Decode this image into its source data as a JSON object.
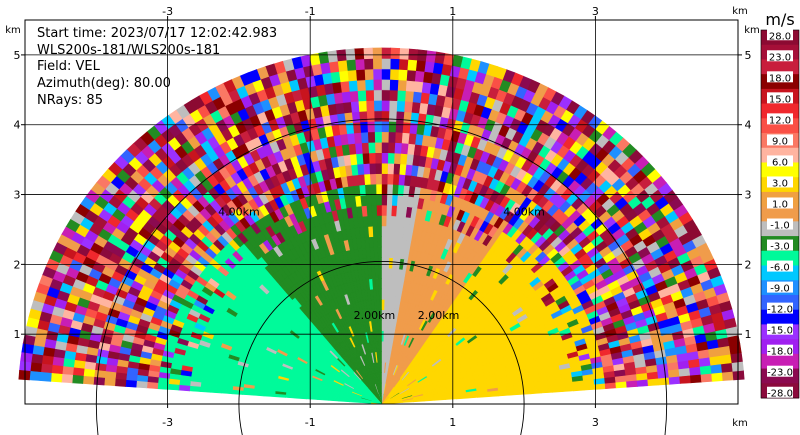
{
  "chart_data": {
    "type": "heatmap",
    "info": {
      "start_time": "Start time: 2023/07/17 12:02:42.983",
      "instrument": "WLS200s-181/WLS200s-181",
      "field": "Field: VEL",
      "azimuth": "Azimuth(deg): 80.00",
      "nrays": "NRays: 85"
    },
    "x_unit": "km",
    "y_unit": "km",
    "colorbar_unit": "m/s",
    "xlim": [
      -5,
      5
    ],
    "ylim": [
      0,
      5.5
    ],
    "x_ticks": [
      "-3",
      "-1",
      "1",
      "3"
    ],
    "x_tick_values": [
      -3,
      -1,
      1,
      3
    ],
    "y_ticks": [
      "1",
      "2",
      "3",
      "4",
      "5"
    ],
    "y_tick_values": [
      1,
      2,
      3,
      4,
      5
    ],
    "range_rings": [
      {
        "label": "2.00km",
        "value": 2
      },
      {
        "label": "4.00km",
        "value": 4
      }
    ],
    "ring_labels": [
      {
        "text": "2.00km",
        "x": -0.1,
        "y": 1.22
      },
      {
        "text": "2.00km",
        "x": 0.8,
        "y": 1.22
      },
      {
        "text": "4.00km",
        "x": -2.0,
        "y": 2.7
      },
      {
        "text": "4.00km",
        "x": 2.0,
        "y": 2.7
      }
    ],
    "max_range_km": 5.1,
    "elevation_range_deg": [
      4,
      176
    ],
    "inner_pattern_range_km": 3.15,
    "velocity_by_angle": [
      {
        "from": 145,
        "to": 176,
        "v": -7
      },
      {
        "from": 130,
        "to": 145,
        "v": -9
      },
      {
        "from": 110,
        "to": 130,
        "v": -5
      },
      {
        "from": 90,
        "to": 110,
        "v": -4
      },
      {
        "from": 80,
        "to": 90,
        "v": 0
      },
      {
        "from": 55,
        "to": 80,
        "v": 2
      },
      {
        "from": 4,
        "to": 55,
        "v": 4
      }
    ],
    "colorbar": {
      "colors": [
        "#8c0a32",
        "#a50f38",
        "#c81e3c",
        "#8b0000",
        "#c8141e",
        "#f0282d",
        "#fa5046",
        "#fa7864",
        "#ffb4a0",
        "#ffff00",
        "#ffd700",
        "#f0a040",
        "#f09c4b",
        "#bebebe",
        "#228b22",
        "#00fa9a",
        "#00c8ff",
        "#1e90ff",
        "#3264ff",
        "#0000ff",
        "#9b30ff",
        "#a020f0",
        "#c81eb4",
        "#8b0a50",
        "#8b0a3c"
      ],
      "labels": [
        "28.0",
        "23.0",
        "18.0",
        "15.0",
        "12.0",
        "9.0",
        "6.0",
        "3.0",
        "1.0",
        "-1.0",
        "-3.0",
        "-6.0",
        "-9.0",
        "-12.0",
        "-15.0",
        "-18.0",
        "-23.0",
        "-28.0"
      ],
      "label_slots": [
        0,
        2,
        4,
        6,
        8,
        10,
        12,
        14,
        16,
        18,
        20,
        22,
        24,
        26,
        28,
        30,
        32,
        34
      ]
    }
  }
}
